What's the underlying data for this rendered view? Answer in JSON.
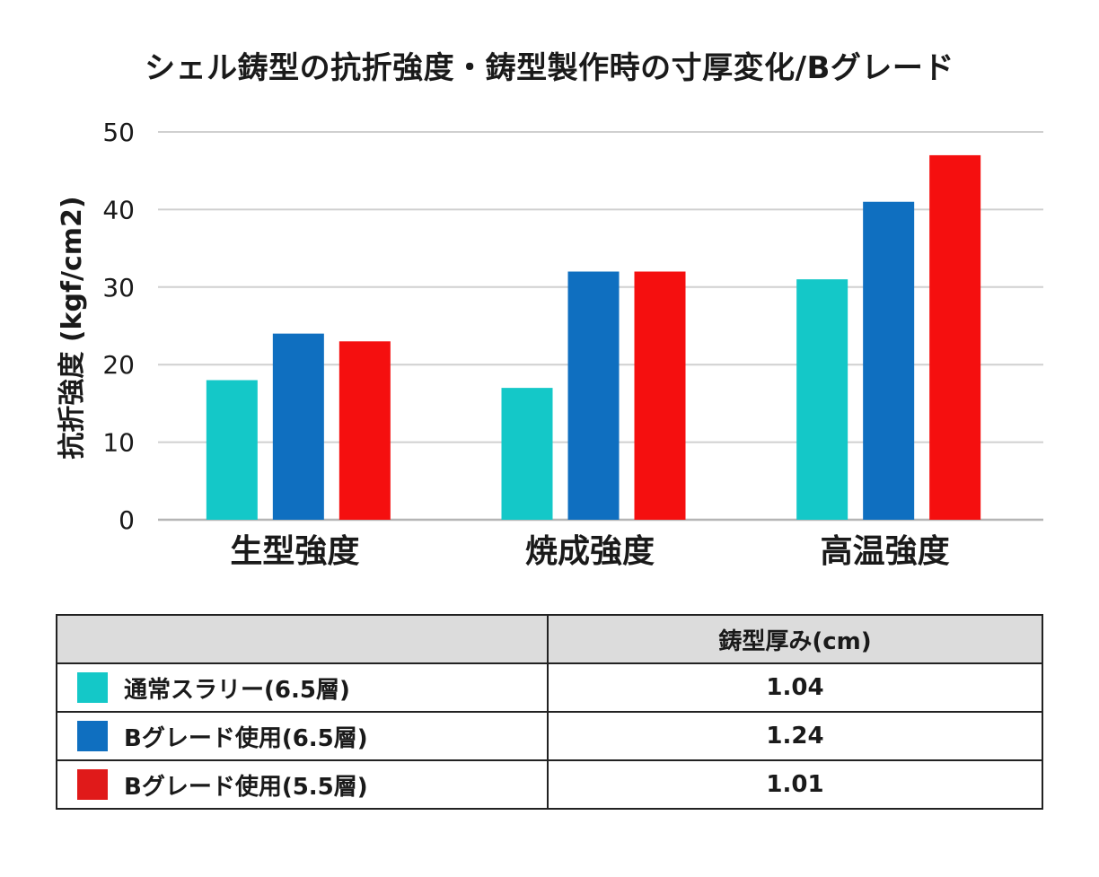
{
  "chart_data": {
    "type": "bar",
    "title": "シェル鋳型の抗折強度・鋳型製作時の寸厚変化/Bグレード",
    "xlabel": "",
    "ylabel": "抗折強度 (kgf/cm2)",
    "ylim": [
      0,
      50
    ],
    "yticks": [
      0,
      10,
      20,
      30,
      40,
      50
    ],
    "grid": true,
    "categories": [
      "生型強度",
      "焼成強度",
      "高温強度"
    ],
    "series": [
      {
        "name": "通常スラリー(6.5層)",
        "color": "#14c8c8",
        "values": [
          18,
          17,
          31
        ]
      },
      {
        "name": "Bグレード使用(6.5層)",
        "color": "#0f6fc0",
        "values": [
          24,
          32,
          41
        ]
      },
      {
        "name": "Bグレード使用(5.5層)",
        "color": "#f50f0f",
        "values": [
          23,
          32,
          47
        ]
      }
    ]
  },
  "table": {
    "header_label": "",
    "header_value": "鋳型厚み(cm)",
    "rows": [
      {
        "label": "通常スラリー(6.5層)",
        "value": "1.04",
        "color": "#14c8c8"
      },
      {
        "label": "Bグレード使用(6.5層)",
        "value": "1.24",
        "color": "#0f6fc0"
      },
      {
        "label": "Bグレード使用(5.5層)",
        "value": "1.01",
        "color": "#e01a1a"
      }
    ]
  }
}
